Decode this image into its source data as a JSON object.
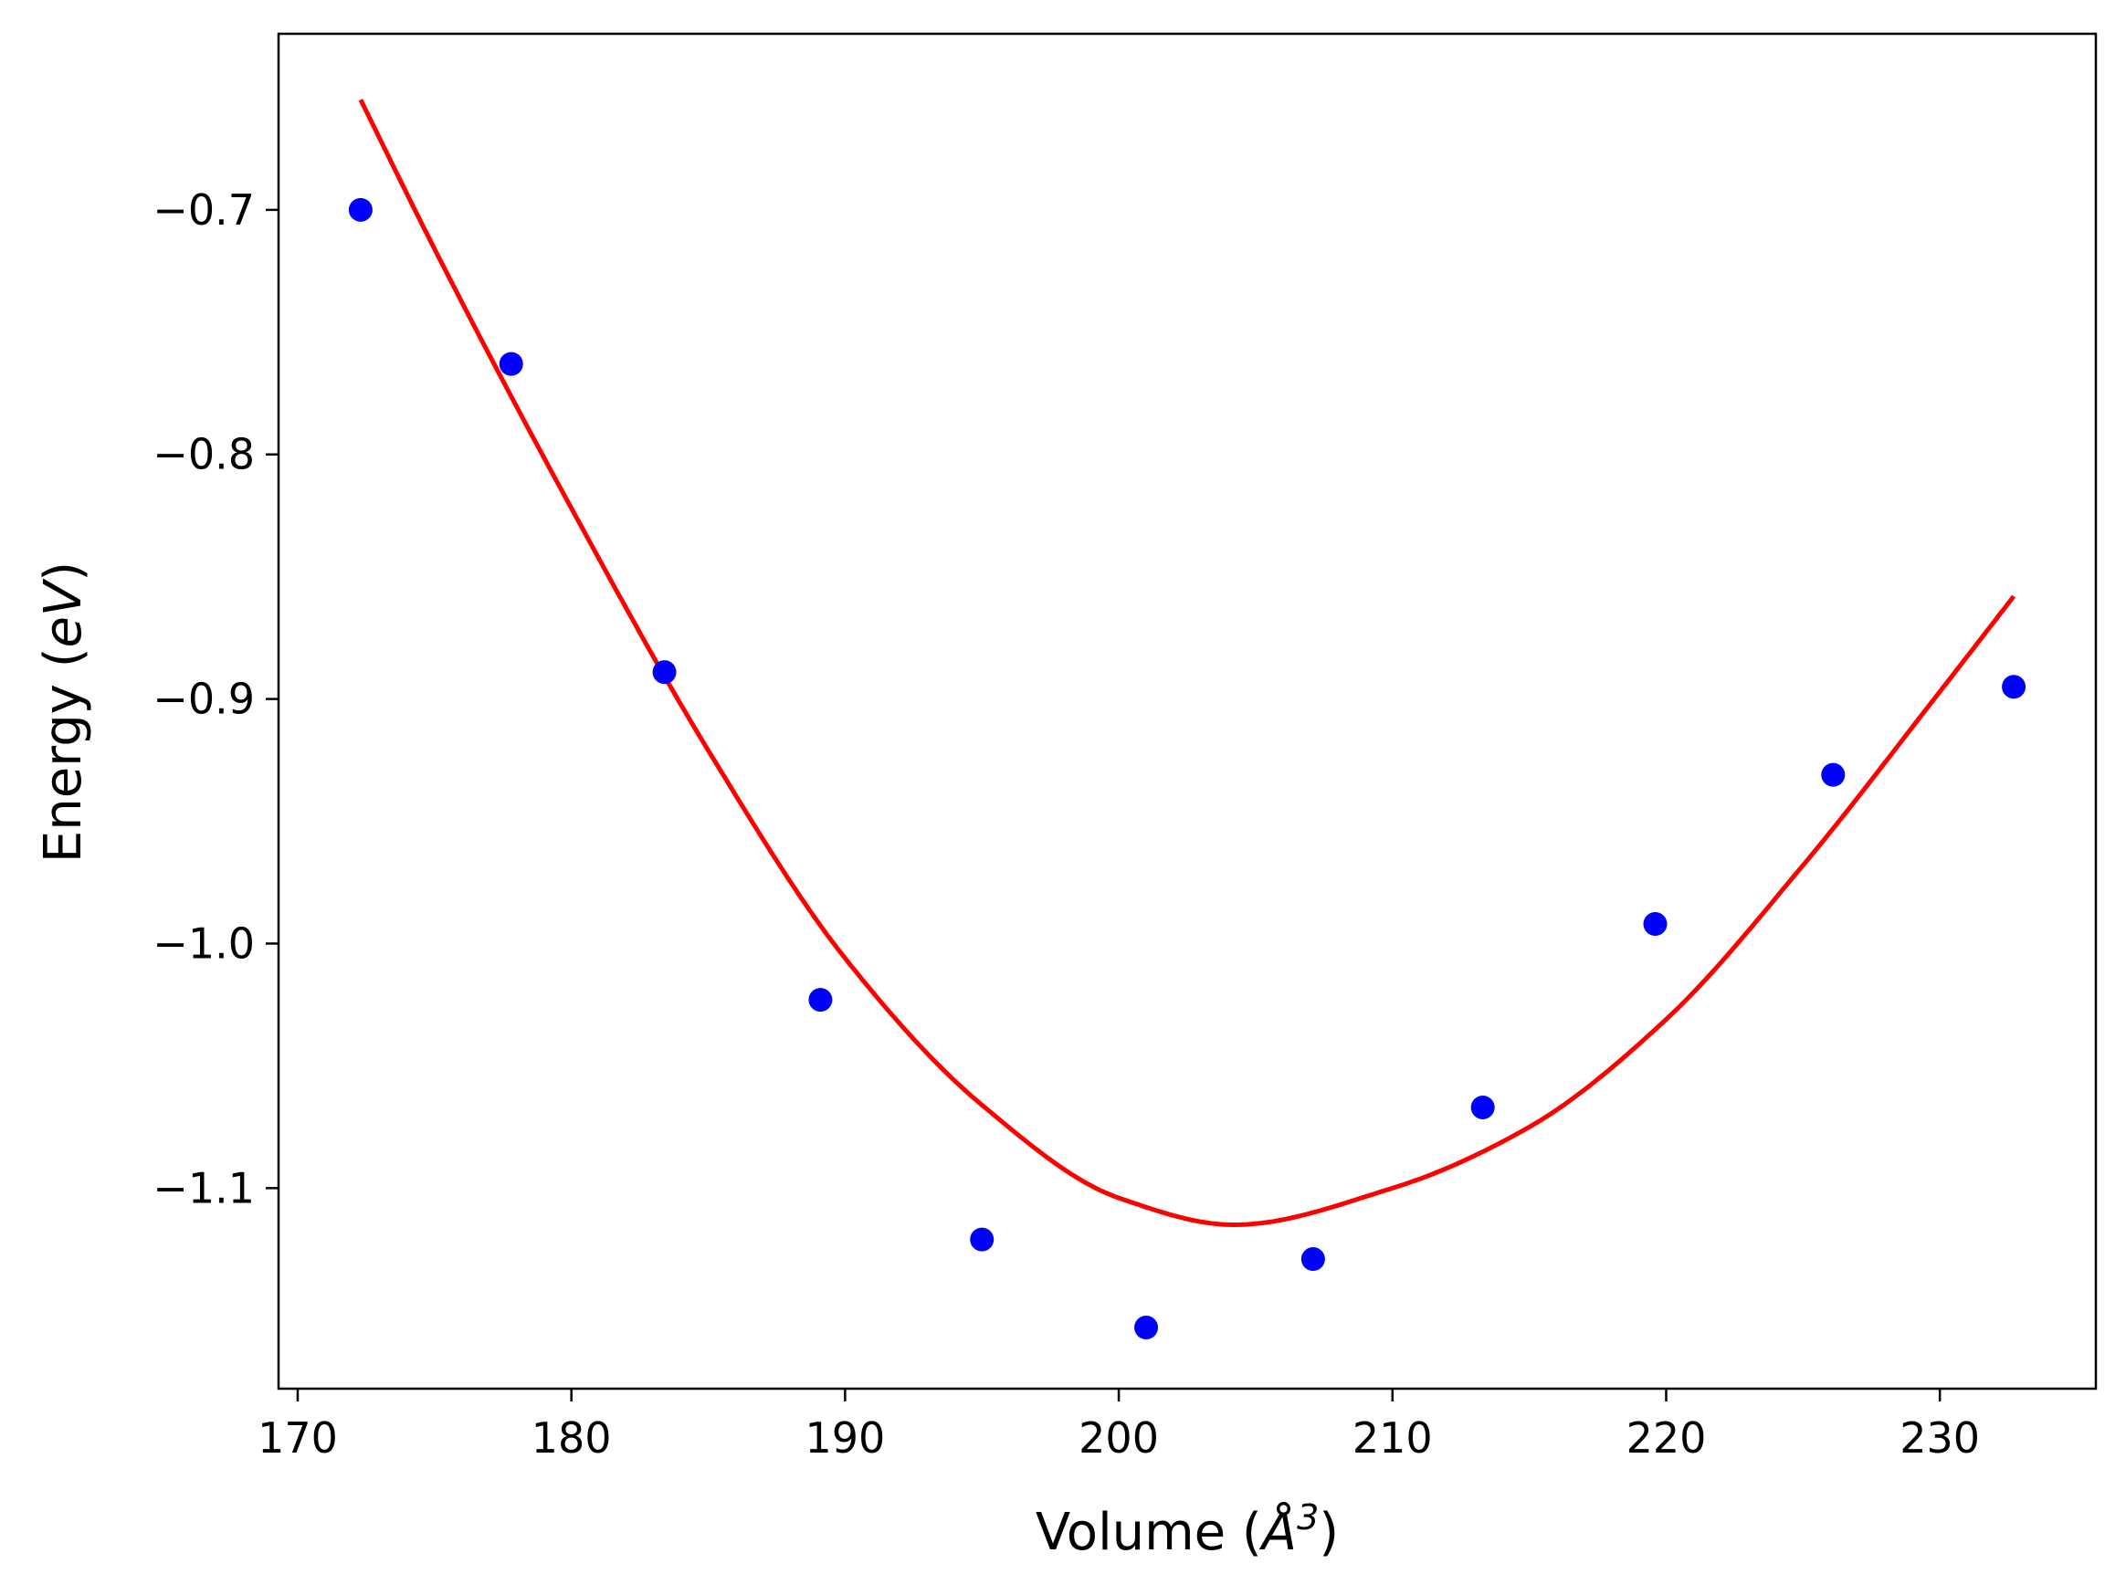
{
  "chart_data": {
    "type": "scatter",
    "xlabel": "Volume (",
    "xlabel_symbol": "Å",
    "xlabel_exponent": "3",
    "xlabel_close": ")",
    "ylabel": "Energy (",
    "ylabel_symbol": "eV",
    "ylabel_close": ")",
    "xlim": [
      169.3,
      235.7
    ],
    "ylim": [
      -1.182,
      -0.628
    ],
    "x_ticks": [
      170,
      180,
      190,
      200,
      210,
      220,
      230
    ],
    "x_tick_labels": [
      "170",
      "180",
      "190",
      "200",
      "210",
      "220",
      "230"
    ],
    "y_ticks": [
      -0.7,
      -0.8,
      -0.9,
      -1.0,
      -1.1
    ],
    "y_tick_labels": [
      "−0.7",
      "−0.8",
      "−0.9",
      "−1.0",
      "−1.1"
    ],
    "grid": false,
    "series": [
      {
        "kind": "points",
        "color": "#0000ff",
        "x": [
          172.3,
          177.8,
          183.4,
          189.1,
          195.0,
          201.0,
          207.1,
          213.3,
          219.6,
          226.1,
          232.7
        ],
        "y": [
          -0.7,
          -0.763,
          -0.889,
          -1.023,
          -1.121,
          -1.157,
          -1.129,
          -1.067,
          -0.992,
          -0.931,
          -0.895
        ]
      },
      {
        "kind": "fit-line",
        "color": "#ff0000",
        "x": [
          172.3,
          175.0,
          180.0,
          185.0,
          190.0,
          195.0,
          200.0,
          204.2,
          210.0,
          215.0,
          220.0,
          225.0,
          230.0,
          232.7
        ],
        "y": [
          -0.655,
          -0.716,
          -0.822,
          -0.921,
          -1.006,
          -1.066,
          -1.104,
          -1.115,
          -1.1,
          -1.075,
          -1.031,
          -0.968,
          -0.897,
          -0.858
        ]
      }
    ]
  }
}
